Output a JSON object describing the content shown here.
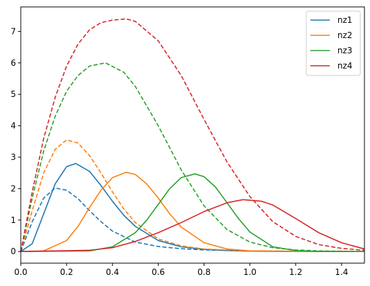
{
  "chart_data": {
    "type": "line",
    "title": "",
    "xlabel": "",
    "ylabel": "",
    "xlim": [
      0,
      1.5
    ],
    "ylim": [
      -0.37,
      7.78
    ],
    "grid": false,
    "legend_position": "top-right",
    "x_ticks": [
      "0.0",
      "0.2",
      "0.4",
      "0.6",
      "0.8",
      "1.0",
      "1.2",
      "1.4"
    ],
    "y_ticks": [
      "0",
      "1",
      "2",
      "3",
      "4",
      "5",
      "6",
      "7"
    ],
    "series": [
      {
        "name": "nz1",
        "color": "#1f77b4",
        "style": "solid",
        "x": [
          0,
          0.05,
          0.1,
          0.15,
          0.2,
          0.24,
          0.3,
          0.35,
          0.4,
          0.45,
          0.5,
          0.6,
          0.7,
          0.8,
          0.9,
          1.0,
          1.2,
          1.5
        ],
        "y": [
          0,
          0.25,
          1.2,
          2.15,
          2.7,
          2.8,
          2.55,
          2.1,
          1.6,
          1.15,
          0.8,
          0.35,
          0.15,
          0.07,
          0.03,
          0.01,
          0.0,
          0.0
        ]
      },
      {
        "name": "nz1",
        "color": "#1f77b4",
        "style": "dashed",
        "x": [
          0,
          0.05,
          0.1,
          0.15,
          0.2,
          0.25,
          0.3,
          0.35,
          0.4,
          0.5,
          0.6,
          0.7,
          0.8,
          1.0,
          1.2,
          1.5
        ],
        "y": [
          0,
          0.95,
          1.7,
          2.02,
          1.95,
          1.68,
          1.3,
          0.95,
          0.65,
          0.3,
          0.16,
          0.09,
          0.05,
          0.02,
          0.01,
          0.0
        ]
      },
      {
        "name": "nz2",
        "color": "#ff7f0e",
        "style": "solid",
        "x": [
          0,
          0.1,
          0.2,
          0.25,
          0.3,
          0.35,
          0.4,
          0.46,
          0.5,
          0.55,
          0.6,
          0.65,
          0.7,
          0.8,
          0.9,
          1.0,
          1.1,
          1.2,
          1.5
        ],
        "y": [
          0,
          0.02,
          0.35,
          0.8,
          1.4,
          1.95,
          2.35,
          2.52,
          2.45,
          2.15,
          1.7,
          1.2,
          0.78,
          0.28,
          0.08,
          0.02,
          0.01,
          0.0,
          0.0
        ]
      },
      {
        "name": "nz2",
        "color": "#ff7f0e",
        "style": "dashed",
        "x": [
          0,
          0.05,
          0.1,
          0.15,
          0.2,
          0.25,
          0.3,
          0.35,
          0.4,
          0.45,
          0.5,
          0.6,
          0.7,
          0.8,
          1.0,
          1.2,
          1.5
        ],
        "y": [
          0,
          1.3,
          2.5,
          3.25,
          3.55,
          3.45,
          3.05,
          2.5,
          1.9,
          1.35,
          0.92,
          0.4,
          0.18,
          0.08,
          0.02,
          0.01,
          0.0
        ]
      },
      {
        "name": "nz3",
        "color": "#2ca02c",
        "style": "solid",
        "x": [
          0,
          0.3,
          0.4,
          0.5,
          0.55,
          0.6,
          0.65,
          0.7,
          0.76,
          0.8,
          0.85,
          0.9,
          0.95,
          1.0,
          1.1,
          1.2,
          1.3,
          1.5
        ],
        "y": [
          0,
          0.02,
          0.15,
          0.6,
          1.0,
          1.5,
          2.0,
          2.35,
          2.47,
          2.38,
          2.05,
          1.55,
          1.05,
          0.62,
          0.15,
          0.03,
          0.0,
          0.0
        ]
      },
      {
        "name": "nz3",
        "color": "#2ca02c",
        "style": "dashed",
        "x": [
          0,
          0.05,
          0.1,
          0.15,
          0.2,
          0.25,
          0.3,
          0.37,
          0.45,
          0.5,
          0.6,
          0.7,
          0.8,
          0.9,
          1.0,
          1.1,
          1.2,
          1.3,
          1.5
        ],
        "y": [
          0,
          1.7,
          3.2,
          4.3,
          5.1,
          5.6,
          5.9,
          6.0,
          5.7,
          5.25,
          4.0,
          2.6,
          1.45,
          0.7,
          0.3,
          0.12,
          0.05,
          0.02,
          0.0
        ]
      },
      {
        "name": "nz4",
        "color": "#d62728",
        "style": "solid",
        "x": [
          0,
          0.3,
          0.4,
          0.5,
          0.6,
          0.7,
          0.8,
          0.9,
          0.97,
          1.05,
          1.1,
          1.2,
          1.3,
          1.4,
          1.5
        ],
        "y": [
          0,
          0.04,
          0.12,
          0.32,
          0.6,
          0.92,
          1.27,
          1.55,
          1.65,
          1.6,
          1.48,
          1.05,
          0.6,
          0.28,
          0.08
        ]
      },
      {
        "name": "nz4",
        "color": "#d62728",
        "style": "dashed",
        "x": [
          0,
          0.05,
          0.1,
          0.15,
          0.2,
          0.25,
          0.3,
          0.35,
          0.4,
          0.46,
          0.5,
          0.6,
          0.7,
          0.8,
          0.9,
          1.0,
          1.1,
          1.2,
          1.3,
          1.4,
          1.5
        ],
        "y": [
          0,
          1.9,
          3.6,
          4.9,
          5.9,
          6.6,
          7.05,
          7.28,
          7.36,
          7.4,
          7.32,
          6.7,
          5.6,
          4.2,
          2.85,
          1.75,
          0.95,
          0.48,
          0.22,
          0.1,
          0.04
        ]
      }
    ],
    "legend": [
      {
        "label": "nz1",
        "color": "#1f77b4"
      },
      {
        "label": "nz2",
        "color": "#ff7f0e"
      },
      {
        "label": "nz3",
        "color": "#2ca02c"
      },
      {
        "label": "nz4",
        "color": "#d62728"
      }
    ]
  }
}
